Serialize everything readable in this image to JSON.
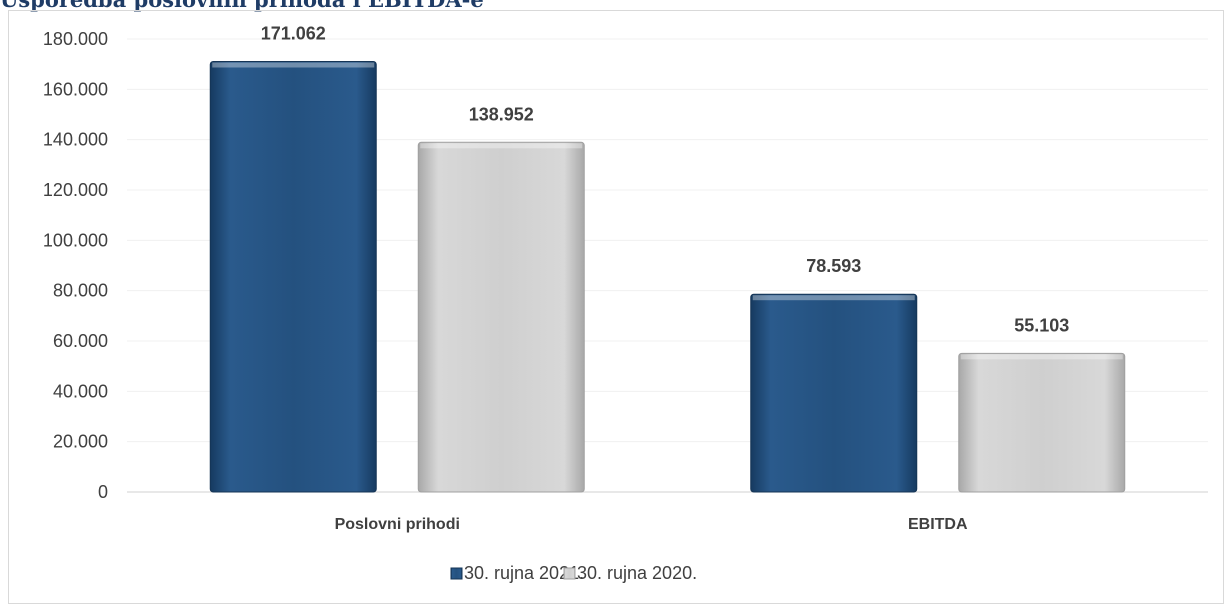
{
  "chart_data": {
    "type": "bar",
    "title": "Usporedba poslovnih prihoda i EBITDA-e",
    "categories": [
      "Poslovni prihodi",
      "EBITDA"
    ],
    "series": [
      {
        "name": "30. rujna 2021.",
        "values": [
          171062,
          78593
        ],
        "labels": [
          "171.062",
          "78.593"
        ],
        "color": "#24517f"
      },
      {
        "name": "30. rujna 2020.",
        "values": [
          138952,
          55103
        ],
        "labels": [
          "138.952",
          "55.103"
        ],
        "color": "#d0d0d0"
      }
    ],
    "ylim": [
      0,
      180000
    ],
    "yticks": [
      0,
      20000,
      40000,
      60000,
      80000,
      100000,
      120000,
      140000,
      160000,
      180000
    ],
    "ytick_labels": [
      "0",
      "20.000",
      "40.000",
      "60.000",
      "80.000",
      "100.000",
      "120.000",
      "140.000",
      "160.000",
      "180.000"
    ],
    "grid": true,
    "legend": "bottom"
  }
}
